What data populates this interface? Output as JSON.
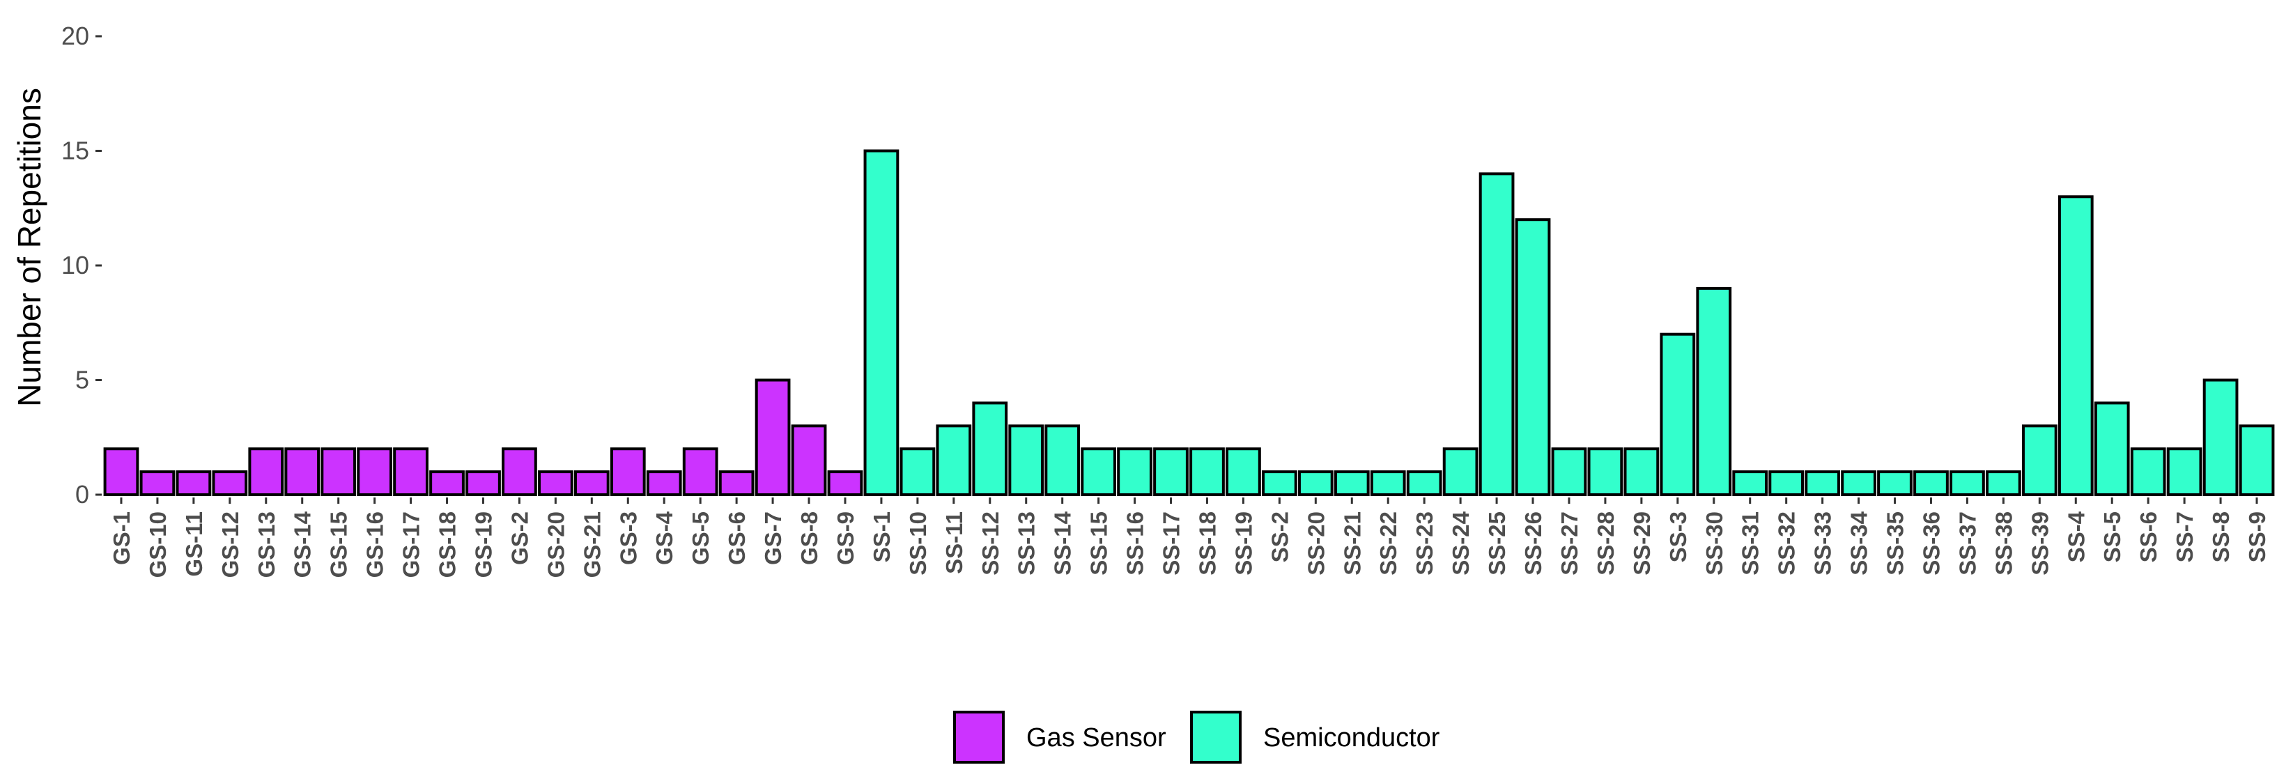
{
  "chart_data": {
    "type": "bar",
    "title": "",
    "xlabel": "",
    "ylabel": "Number of Repetitions",
    "ylim": [
      0,
      20
    ],
    "yticks": [
      0,
      5,
      10,
      15,
      20
    ],
    "grid": false,
    "legend_position": "bottom",
    "series": [
      {
        "name": "Gas Sensor",
        "color": "#cc33ff"
      },
      {
        "name": "Semiconductor",
        "color": "#33ffcc"
      }
    ],
    "bars": [
      {
        "label": "GS-1",
        "value": 2,
        "series": "Gas Sensor"
      },
      {
        "label": "GS-10",
        "value": 1,
        "series": "Gas Sensor"
      },
      {
        "label": "GS-11",
        "value": 1,
        "series": "Gas Sensor"
      },
      {
        "label": "GS-12",
        "value": 1,
        "series": "Gas Sensor"
      },
      {
        "label": "GS-13",
        "value": 2,
        "series": "Gas Sensor"
      },
      {
        "label": "GS-14",
        "value": 2,
        "series": "Gas Sensor"
      },
      {
        "label": "GS-15",
        "value": 2,
        "series": "Gas Sensor"
      },
      {
        "label": "GS-16",
        "value": 2,
        "series": "Gas Sensor"
      },
      {
        "label": "GS-17",
        "value": 2,
        "series": "Gas Sensor"
      },
      {
        "label": "GS-18",
        "value": 1,
        "series": "Gas Sensor"
      },
      {
        "label": "GS-19",
        "value": 1,
        "series": "Gas Sensor"
      },
      {
        "label": "GS-2",
        "value": 2,
        "series": "Gas Sensor"
      },
      {
        "label": "GS-20",
        "value": 1,
        "series": "Gas Sensor"
      },
      {
        "label": "GS-21",
        "value": 1,
        "series": "Gas Sensor"
      },
      {
        "label": "GS-3",
        "value": 2,
        "series": "Gas Sensor"
      },
      {
        "label": "GS-4",
        "value": 1,
        "series": "Gas Sensor"
      },
      {
        "label": "GS-5",
        "value": 2,
        "series": "Gas Sensor"
      },
      {
        "label": "GS-6",
        "value": 1,
        "series": "Gas Sensor"
      },
      {
        "label": "GS-7",
        "value": 5,
        "series": "Gas Sensor"
      },
      {
        "label": "GS-8",
        "value": 3,
        "series": "Gas Sensor"
      },
      {
        "label": "GS-9",
        "value": 1,
        "series": "Gas Sensor"
      },
      {
        "label": "SS-1",
        "value": 15,
        "series": "Semiconductor"
      },
      {
        "label": "SS-10",
        "value": 2,
        "series": "Semiconductor"
      },
      {
        "label": "SS-11",
        "value": 3,
        "series": "Semiconductor"
      },
      {
        "label": "SS-12",
        "value": 4,
        "series": "Semiconductor"
      },
      {
        "label": "SS-13",
        "value": 3,
        "series": "Semiconductor"
      },
      {
        "label": "SS-14",
        "value": 3,
        "series": "Semiconductor"
      },
      {
        "label": "SS-15",
        "value": 2,
        "series": "Semiconductor"
      },
      {
        "label": "SS-16",
        "value": 2,
        "series": "Semiconductor"
      },
      {
        "label": "SS-17",
        "value": 2,
        "series": "Semiconductor"
      },
      {
        "label": "SS-18",
        "value": 2,
        "series": "Semiconductor"
      },
      {
        "label": "SS-19",
        "value": 2,
        "series": "Semiconductor"
      },
      {
        "label": "SS-2",
        "value": 1,
        "series": "Semiconductor"
      },
      {
        "label": "SS-20",
        "value": 1,
        "series": "Semiconductor"
      },
      {
        "label": "SS-21",
        "value": 1,
        "series": "Semiconductor"
      },
      {
        "label": "SS-22",
        "value": 1,
        "series": "Semiconductor"
      },
      {
        "label": "SS-23",
        "value": 1,
        "series": "Semiconductor"
      },
      {
        "label": "SS-24",
        "value": 2,
        "series": "Semiconductor"
      },
      {
        "label": "SS-25",
        "value": 14,
        "series": "Semiconductor"
      },
      {
        "label": "SS-26",
        "value": 12,
        "series": "Semiconductor"
      },
      {
        "label": "SS-27",
        "value": 2,
        "series": "Semiconductor"
      },
      {
        "label": "SS-28",
        "value": 2,
        "series": "Semiconductor"
      },
      {
        "label": "SS-29",
        "value": 2,
        "series": "Semiconductor"
      },
      {
        "label": "SS-3",
        "value": 7,
        "series": "Semiconductor"
      },
      {
        "label": "SS-30",
        "value": 9,
        "series": "Semiconductor"
      },
      {
        "label": "SS-31",
        "value": 1,
        "series": "Semiconductor"
      },
      {
        "label": "SS-32",
        "value": 1,
        "series": "Semiconductor"
      },
      {
        "label": "SS-33",
        "value": 1,
        "series": "Semiconductor"
      },
      {
        "label": "SS-34",
        "value": 1,
        "series": "Semiconductor"
      },
      {
        "label": "SS-35",
        "value": 1,
        "series": "Semiconductor"
      },
      {
        "label": "SS-36",
        "value": 1,
        "series": "Semiconductor"
      },
      {
        "label": "SS-37",
        "value": 1,
        "series": "Semiconductor"
      },
      {
        "label": "SS-38",
        "value": 1,
        "series": "Semiconductor"
      },
      {
        "label": "SS-39",
        "value": 3,
        "series": "Semiconductor"
      },
      {
        "label": "SS-4",
        "value": 13,
        "series": "Semiconductor"
      },
      {
        "label": "SS-5",
        "value": 4,
        "series": "Semiconductor"
      },
      {
        "label": "SS-6",
        "value": 2,
        "series": "Semiconductor"
      },
      {
        "label": "SS-7",
        "value": 2,
        "series": "Semiconductor"
      },
      {
        "label": "SS-8",
        "value": 5,
        "series": "Semiconductor"
      },
      {
        "label": "SS-9",
        "value": 3,
        "series": "Semiconductor"
      }
    ]
  }
}
